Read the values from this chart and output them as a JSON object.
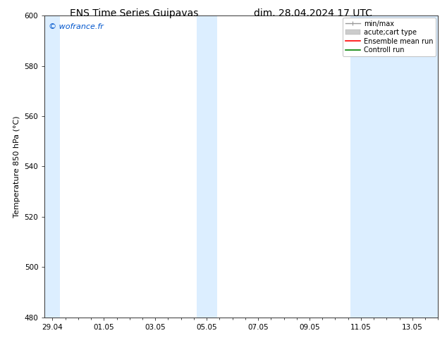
{
  "title_left": "ENS Time Series Guipavas",
  "title_right": "dim. 28.04.2024 17 UTC",
  "ylabel": "Temperature 850 hPa (°C)",
  "watermark": "© wofrance.fr",
  "watermark_color": "#0055cc",
  "ylim": [
    480,
    600
  ],
  "yticks": [
    480,
    500,
    520,
    540,
    560,
    580,
    600
  ],
  "xtick_labels": [
    "29.04",
    "01.05",
    "03.05",
    "05.05",
    "07.05",
    "09.05",
    "11.05",
    "13.05"
  ],
  "xtick_positions": [
    0,
    2,
    4,
    6,
    8,
    10,
    12,
    14
  ],
  "xlim": [
    -0.3,
    15.0
  ],
  "shaded_bands": [
    {
      "xmin": -0.3,
      "xmax": 0.3
    },
    {
      "xmin": 5.6,
      "xmax": 6.4
    },
    {
      "xmin": 11.6,
      "xmax": 15.0
    }
  ],
  "shaded_color": "#dceeff",
  "legend_entries": [
    {
      "label": "min/max",
      "color": "#999999",
      "lw": 1.0,
      "style": "minmax"
    },
    {
      "label": "acute;cart type",
      "color": "#cccccc",
      "lw": 5,
      "style": "thick"
    },
    {
      "label": "Ensemble mean run",
      "color": "red",
      "lw": 1.2,
      "style": "line"
    },
    {
      "label": "Controll run",
      "color": "green",
      "lw": 1.2,
      "style": "line"
    }
  ],
  "bg_color": "#ffffff",
  "axes_bg_color": "#ffffff",
  "title_fontsize": 10,
  "axis_label_fontsize": 8,
  "tick_fontsize": 7.5,
  "legend_fontsize": 7,
  "watermark_fontsize": 8
}
